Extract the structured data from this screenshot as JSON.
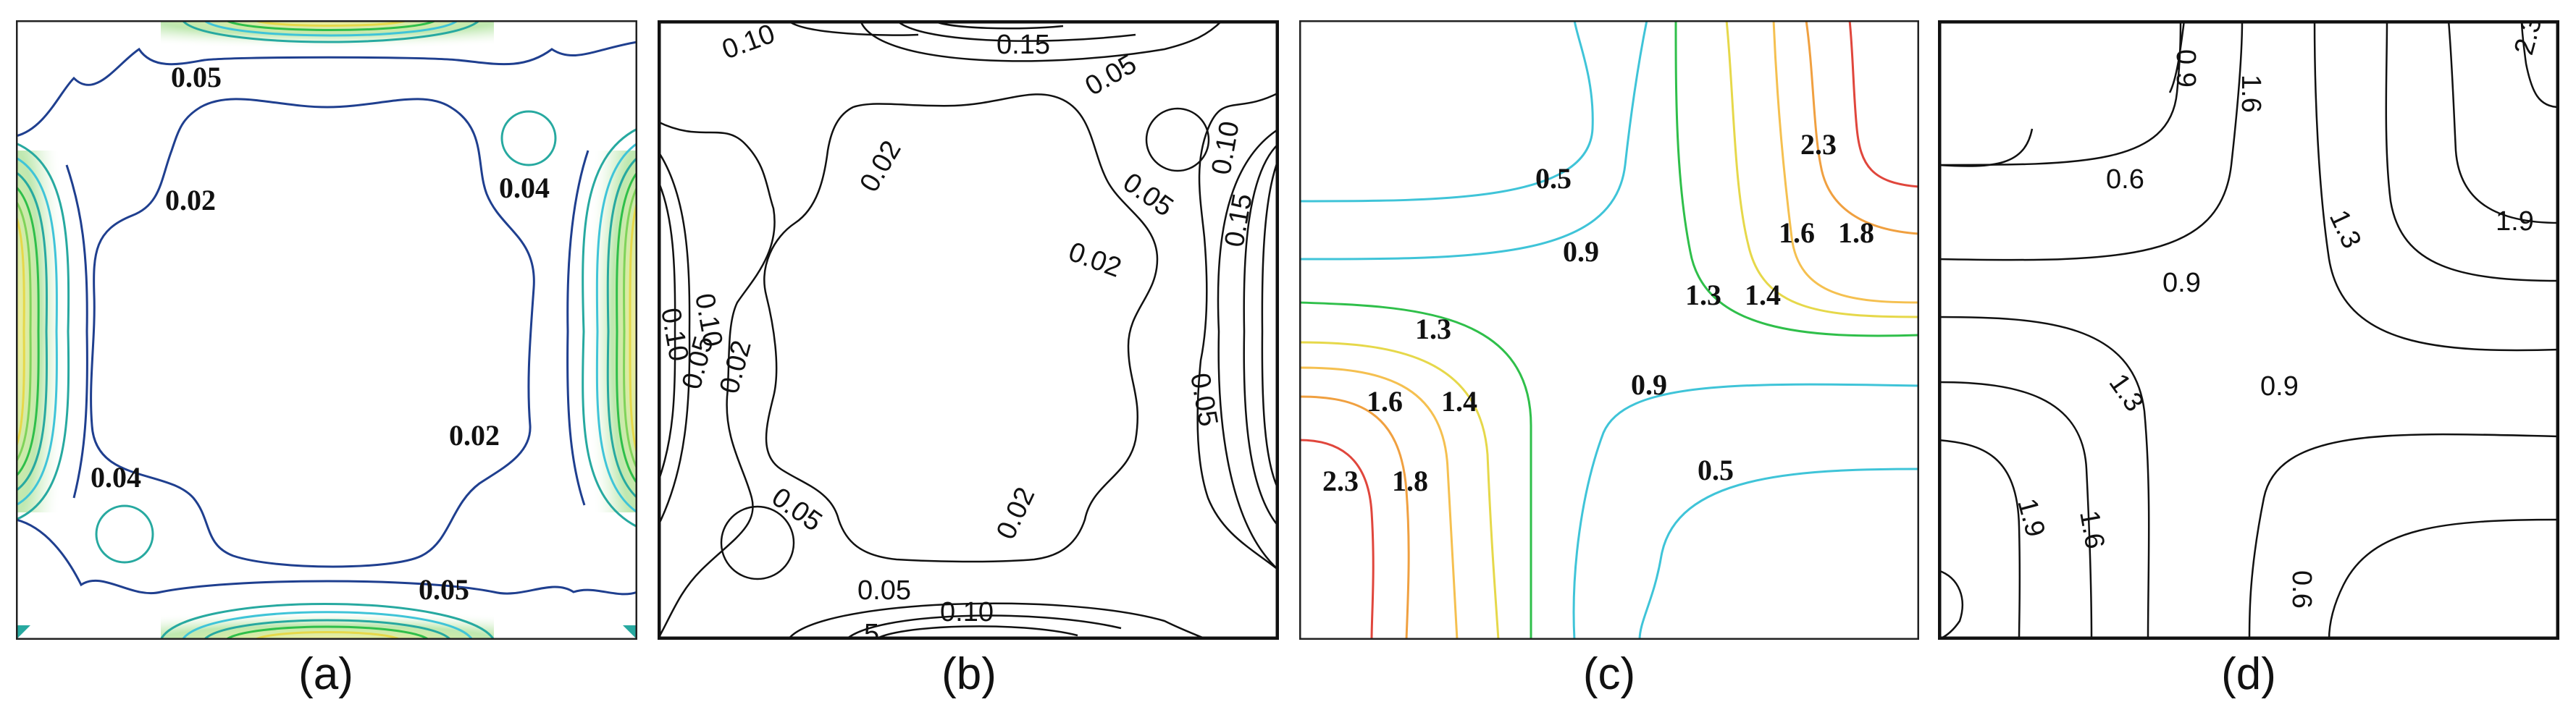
{
  "figures": [
    {
      "caption": "(a)",
      "labels": [
        "0.05",
        "0.02",
        "0.04",
        "0.02",
        "0.04",
        "0.05"
      ]
    },
    {
      "caption": "(b)",
      "labels": [
        "0.10",
        "0.15",
        "0.05",
        "0.02",
        "0.05",
        "0.10",
        "0.15",
        "0.10",
        "0.02",
        "0.05",
        "0.02",
        "0.10",
        "0.05",
        "0.05",
        "0.02",
        "0.05",
        "0.10",
        "5"
      ]
    },
    {
      "caption": "(c)",
      "labels": [
        "0.5",
        "2.3",
        "0.9",
        "1.6",
        "1.8",
        "1.3",
        "1.4",
        "1.3",
        "0.9",
        "1.6",
        "1.4",
        "0.5",
        "2.3",
        "1.8"
      ]
    },
    {
      "caption": "(d)",
      "labels": [
        "0.9",
        "1.6",
        "2.3",
        "0.6",
        "1.9",
        "1.3",
        "0.9",
        "1.3",
        "0.9",
        "1.9",
        "1.6",
        "0.6"
      ]
    }
  ],
  "colors": {
    "dark_blue": "#1f3f8f",
    "cyan": "#3fc4d8",
    "teal": "#27a9a0",
    "green": "#2fbf4a",
    "yellow": "#e6d84a",
    "orange": "#f0a040",
    "red": "#e0463c",
    "black": "#111111"
  }
}
